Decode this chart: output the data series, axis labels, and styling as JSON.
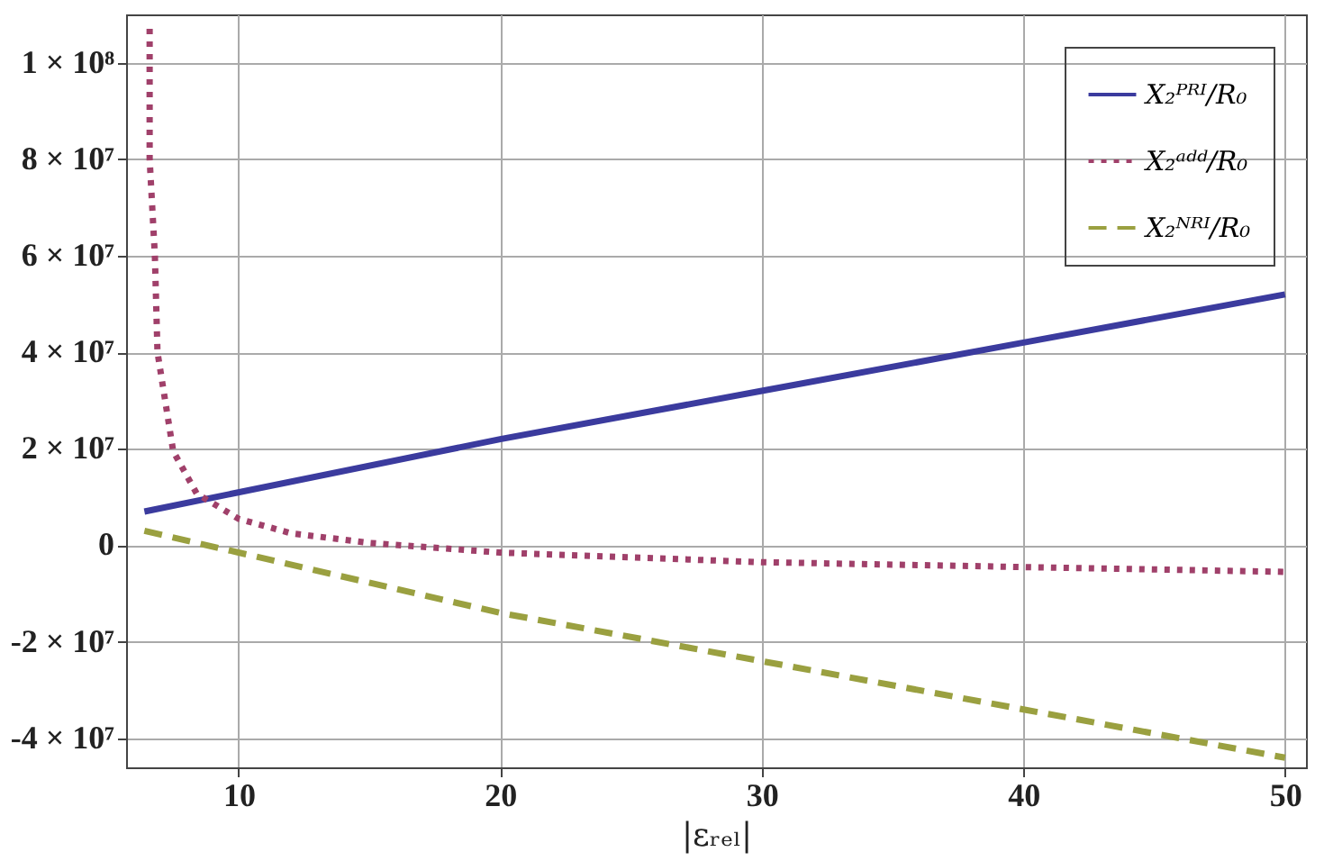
{
  "chart_data": {
    "type": "line",
    "xlabel": "|εᵣₑₗ|",
    "xlim": [
      5.7,
      50.8
    ],
    "xticks": [
      10,
      20,
      30,
      40,
      50
    ],
    "ylim": [
      -46000000,
      110000000
    ],
    "yticks": [
      {
        "value": -40000000,
        "label": "-4 × 10⁷"
      },
      {
        "value": -20000000,
        "label": "-2 × 10⁷"
      },
      {
        "value": 0,
        "label": "0"
      },
      {
        "value": 20000000,
        "label": "2 × 10⁷"
      },
      {
        "value": 40000000,
        "label": "4 × 10⁷"
      },
      {
        "value": 60000000,
        "label": "6 × 10⁷"
      },
      {
        "value": 80000000,
        "label": "8 × 10⁷"
      },
      {
        "value": 100000000,
        "label": "1 × 10⁸"
      }
    ],
    "grid": true,
    "legend": "top right",
    "series": [
      {
        "name": "X₂ᴾᴿᴵ/R₀",
        "color": "#3b3b9e",
        "line_style": "solid",
        "x": [
          6.4,
          20,
          30,
          40,
          50
        ],
        "values": [
          7000000,
          22000000,
          32000000,
          42000000,
          52000000
        ]
      },
      {
        "name": "X₂ᵃᵈᵈ/R₀",
        "color": "#a0406a",
        "line_style": "dotted",
        "x": [
          6.6,
          6.6,
          6.8,
          6.9,
          7.5,
          8.4,
          10,
          12,
          15,
          20,
          30,
          40,
          50
        ],
        "values": [
          107000000,
          80000000,
          60000000,
          40000000,
          19500000,
          10700000,
          5500000,
          2500000,
          500000,
          -1500000,
          -3500000,
          -4500000,
          -5500000
        ]
      },
      {
        "name": "X₂ᴺᴿᴵ/R₀",
        "color": "#9aa040",
        "line_style": "dashed",
        "x": [
          6.4,
          10,
          20,
          30,
          40,
          50
        ],
        "values": [
          3000000,
          -1500000,
          -14000000,
          -24000000,
          -34000000,
          -44000000
        ]
      }
    ]
  }
}
